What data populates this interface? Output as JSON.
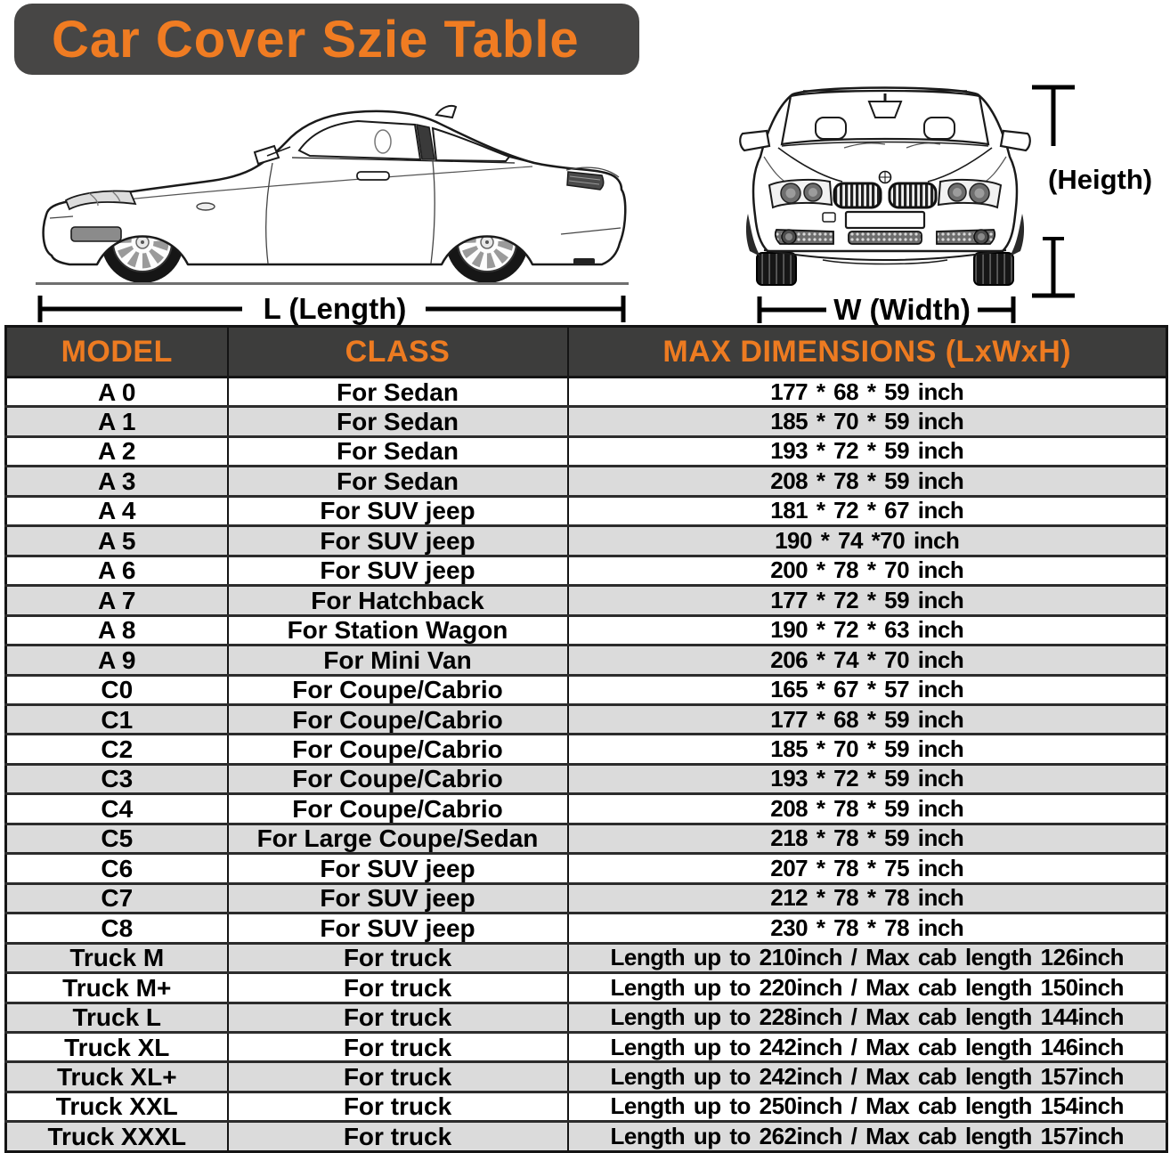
{
  "title": "Car Cover Szie Table",
  "diagram": {
    "length_label": "L (Length)",
    "width_label": "W (Width)",
    "height_label": "(Heigth)"
  },
  "table": {
    "headers": [
      "MODEL",
      "CLASS",
      "MAX DIMENSIONS (LxWxH)"
    ],
    "rows": [
      [
        "A 0",
        "For Sedan",
        "177 * 68 * 59 inch"
      ],
      [
        "A 1",
        "For Sedan",
        "185 * 70 * 59 inch"
      ],
      [
        "A 2",
        "For Sedan",
        "193 * 72 * 59 inch"
      ],
      [
        "A 3",
        "For Sedan",
        "208 * 78 * 59 inch"
      ],
      [
        "A 4",
        "For SUV jeep",
        "181 * 72 * 67 inch"
      ],
      [
        "A 5",
        "For SUV jeep",
        "190 * 74  *70 inch"
      ],
      [
        "A 6",
        "For SUV jeep",
        "200 * 78 * 70 inch"
      ],
      [
        "A 7",
        "For Hatchback",
        "177 * 72 * 59 inch"
      ],
      [
        "A 8",
        "For Station Wagon",
        "190 * 72 * 63 inch"
      ],
      [
        "A 9",
        "For Mini Van",
        "206 * 74 * 70 inch"
      ],
      [
        "C0",
        "For Coupe/Cabrio",
        "165 * 67 * 57 inch"
      ],
      [
        "C1",
        "For Coupe/Cabrio",
        "177 * 68 * 59 inch"
      ],
      [
        "C2",
        "For Coupe/Cabrio",
        "185 * 70 * 59 inch"
      ],
      [
        "C3",
        "For Coupe/Cabrio",
        "193 * 72 * 59 inch"
      ],
      [
        "C4",
        "For Coupe/Cabrio",
        "208 * 78 * 59 inch"
      ],
      [
        "C5",
        "For Large Coupe/Sedan",
        "218 * 78 * 59 inch"
      ],
      [
        "C6",
        "For SUV jeep",
        "207 * 78 * 75 inch"
      ],
      [
        "C7",
        "For SUV jeep",
        "212 * 78 * 78 inch"
      ],
      [
        "C8",
        "For SUV jeep",
        "230 * 78 * 78 inch"
      ],
      [
        "Truck M",
        "For truck",
        "Length up to 210inch / Max cab length 126inch"
      ],
      [
        "Truck M+",
        "For truck",
        "Length up to 220inch / Max cab length 150inch"
      ],
      [
        "Truck L",
        "For truck",
        "Length up to 228inch / Max cab length 144inch"
      ],
      [
        "Truck XL",
        "For truck",
        "Length up to 242inch / Max cab length 146inch"
      ],
      [
        "Truck XL+",
        "For truck",
        "Length up to 242inch / Max cab length 157inch"
      ],
      [
        "Truck XXL",
        "For truck",
        "Length up to 250inch / Max cab length 154inch"
      ],
      [
        "Truck XXXL",
        "For truck",
        "Length up to 262inch / Max cab length 157inch"
      ]
    ]
  },
  "colors": {
    "accent_orange": "#ed7b21",
    "title_bg": "#474645",
    "header_bg": "#3d3d3c",
    "row_alt_bg": "#dbdbdb",
    "border_dark": "#141414"
  }
}
